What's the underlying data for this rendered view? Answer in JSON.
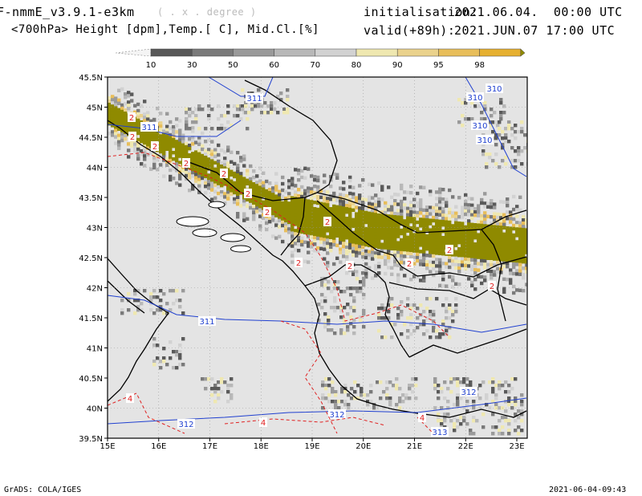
{
  "header": {
    "model": "F-nmmE_v3.9.1-e3km",
    "projection_note": "( . x . degree )",
    "variables": "<700hPa> Height [dpm],Temp.[ C], Mid.Cl.[%]",
    "init_label": "initialisation:",
    "init_value": "2021.06.04.  00:00 UTC",
    "valid_label": "valid(+89h):",
    "valid_value": "2021.JUN.07 17:00 UTC"
  },
  "colorbar": {
    "labels": [
      "10",
      "30",
      "50",
      "60",
      "70",
      "80",
      "90",
      "95",
      "98"
    ],
    "colors": [
      "#585858",
      "#7a7a7a",
      "#9a9a9a",
      "#b8b8b8",
      "#d2d2d2",
      "#efe8b0",
      "#ead28c",
      "#e8be5a",
      "#e6b030",
      "#8f8a00"
    ]
  },
  "axes": {
    "lat_labels": [
      "45.5N",
      "45N",
      "44.5N",
      "44N",
      "43.5N",
      "43N",
      "42.5N",
      "42N",
      "41.5N",
      "41N",
      "40.5N",
      "40N",
      "39.5N"
    ],
    "lon_labels": [
      "15E",
      "16E",
      "17E",
      "18E",
      "19E",
      "20E",
      "21E",
      "22E",
      "23E"
    ]
  },
  "contours": {
    "height_labels": [
      "311",
      "311",
      "311",
      "310",
      "310",
      "310",
      "310",
      "312",
      "312",
      "312",
      "313"
    ],
    "temp_labels": [
      "2",
      "2",
      "2",
      "2",
      "2",
      "2",
      "2",
      "2",
      "2",
      "2",
      "2",
      "2",
      "2",
      "4",
      "4",
      "4"
    ]
  },
  "colors": {
    "land": "#e4e4e4",
    "sea": "#e4e4e4",
    "cloud_max": "#8f8a00",
    "height_contour": "#2040d0",
    "temp_contour": "#e02020"
  },
  "footer": {
    "left": "GrADS: COLA/IGES",
    "right": "2021-06-04-09:43"
  }
}
